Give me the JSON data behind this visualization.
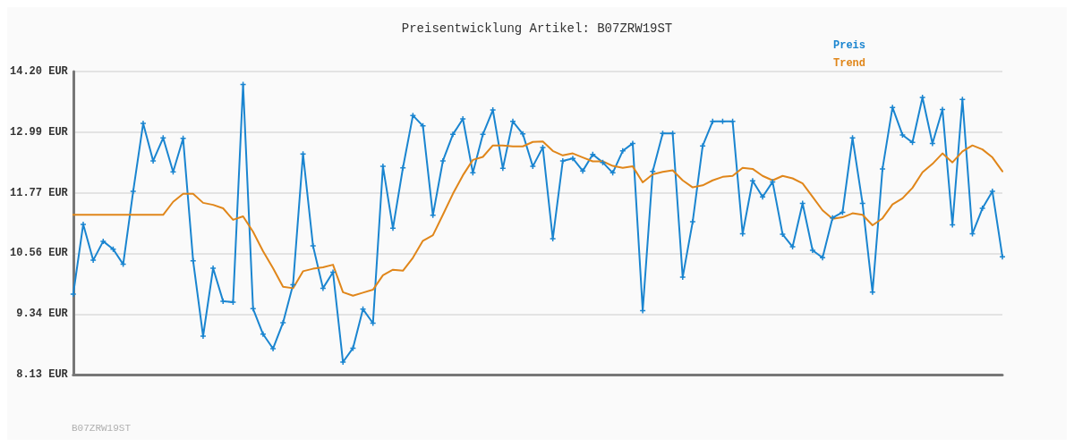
{
  "chart_data": {
    "type": "line",
    "title": "Preisentwicklung Artikel: B07ZRW19ST",
    "categories": [
      null,
      null,
      null,
      null,
      null,
      null,
      null,
      null,
      null,
      null,
      null,
      null,
      null,
      null,
      null,
      null,
      null,
      null,
      null,
      null,
      null,
      null,
      null,
      null,
      null,
      null,
      null,
      null,
      null,
      null,
      null,
      null,
      null,
      null,
      null,
      null,
      null,
      null,
      null,
      null,
      null,
      null,
      null,
      null,
      null,
      null,
      null,
      null,
      null,
      null,
      null,
      null,
      null,
      null,
      null,
      null,
      null,
      null,
      null,
      null,
      null,
      null,
      null,
      null,
      null,
      null,
      null,
      null,
      null,
      null,
      null,
      null,
      null,
      null,
      null,
      null,
      null,
      null,
      null,
      null,
      null,
      null,
      null,
      null,
      null,
      null,
      null,
      null,
      null,
      null,
      null,
      null,
      null,
      null
    ],
    "series": [
      {
        "name": "Preis",
        "color": "#1a85d0",
        "marker": "cross",
        "values": [
          9.74,
          11.14,
          10.42,
          10.8,
          10.64,
          10.34,
          11.8,
          13.16,
          12.41,
          12.87,
          12.19,
          12.86,
          10.41,
          8.9,
          10.26,
          9.6,
          9.58,
          13.94,
          9.45,
          8.94,
          8.65,
          9.17,
          9.93,
          12.55,
          10.71,
          9.86,
          10.18,
          8.38,
          8.66,
          9.44,
          9.16,
          12.3,
          11.06,
          12.27,
          13.32,
          13.11,
          11.32,
          12.41,
          12.94,
          13.25,
          12.17,
          12.94,
          13.43,
          12.26,
          13.2,
          12.95,
          12.3,
          12.68,
          10.85,
          12.41,
          12.46,
          12.21,
          12.54,
          12.38,
          12.17,
          12.61,
          12.76,
          9.41,
          12.2,
          12.96,
          12.96,
          10.08,
          11.19,
          12.71,
          13.2,
          13.2,
          13.2,
          10.95,
          12.01,
          11.69,
          11.99,
          10.94,
          10.69,
          11.56,
          10.62,
          10.47,
          11.27,
          11.38,
          12.87,
          11.56,
          9.78,
          12.25,
          13.48,
          12.93,
          12.78,
          13.68,
          12.76,
          13.44,
          11.13,
          13.64,
          10.95,
          11.46,
          11.8,
          10.49
        ]
      },
      {
        "name": "Trend",
        "color": "#e0861a",
        "marker": "none",
        "values": [
          11.33,
          11.33,
          11.33,
          11.33,
          11.33,
          11.33,
          11.33,
          11.33,
          11.33,
          11.33,
          11.59,
          11.75,
          11.75,
          11.57,
          11.53,
          11.46,
          11.23,
          11.3,
          10.99,
          10.6,
          10.26,
          9.89,
          9.86,
          10.2,
          10.25,
          10.28,
          10.33,
          9.78,
          9.71,
          9.77,
          9.83,
          10.12,
          10.23,
          10.21,
          10.47,
          10.81,
          10.92,
          11.33,
          11.75,
          12.12,
          12.43,
          12.49,
          12.72,
          12.72,
          12.7,
          12.7,
          12.79,
          12.8,
          12.61,
          12.52,
          12.56,
          12.48,
          12.4,
          12.4,
          12.31,
          12.27,
          12.3,
          11.98,
          12.14,
          12.19,
          12.22,
          12.02,
          11.88,
          11.92,
          12.02,
          12.09,
          12.11,
          12.27,
          12.25,
          12.11,
          12.02,
          12.11,
          12.06,
          11.96,
          11.69,
          11.42,
          11.25,
          11.28,
          11.36,
          11.33,
          11.12,
          11.26,
          11.54,
          11.66,
          11.87,
          12.18,
          12.35,
          12.56,
          12.38,
          12.6,
          12.72,
          12.64,
          12.48,
          12.2
        ]
      }
    ],
    "ylim": [
      8.13,
      14.2
    ],
    "yticks": [
      {
        "value": 8.13,
        "label": "8.13 EUR"
      },
      {
        "value": 9.34,
        "label": "9.34 EUR"
      },
      {
        "value": 10.56,
        "label": "10.56 EUR"
      },
      {
        "value": 11.77,
        "label": "11.77 EUR"
      },
      {
        "value": 12.99,
        "label": "12.99 EUR"
      },
      {
        "value": 14.2,
        "label": "14.20 EUR"
      }
    ],
    "grid": "y",
    "legend": "top right",
    "tick_labels": "y",
    "line_style": "solid",
    "annotations": [
      "B07ZRW19ST"
    ]
  }
}
